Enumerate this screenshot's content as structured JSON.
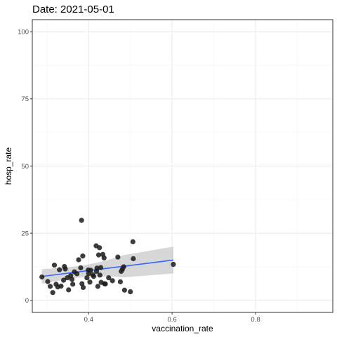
{
  "chart_data": {
    "type": "scatter",
    "title": "Date: 2021-05-01",
    "xlabel": "vaccination_rate",
    "ylabel": "hosp_rate",
    "xlim": [
      0.265,
      0.985
    ],
    "ylim": [
      -4.5,
      104.5
    ],
    "x_ticks": [
      0.4,
      0.6,
      0.8
    ],
    "x_tick_labels": [
      "0.4",
      "0.6",
      "0.8"
    ],
    "y_ticks": [
      0,
      25,
      50,
      75,
      100
    ],
    "y_tick_labels": [
      "0",
      "25",
      "50",
      "75",
      "100"
    ],
    "grid": true,
    "colors": {
      "points": "#1a1a1a",
      "trend_line": "#3366FF",
      "confidence_band": "#bdbdbd",
      "grid_major": "#ebebeb",
      "grid_minor": "#f5f5f5",
      "panel_border": "#333333"
    },
    "points": [
      [
        0.288,
        8.7
      ],
      [
        0.302,
        7.0
      ],
      [
        0.308,
        5.2
      ],
      [
        0.314,
        2.9
      ],
      [
        0.318,
        13.1
      ],
      [
        0.322,
        6.0
      ],
      [
        0.326,
        5.0
      ],
      [
        0.33,
        11.4
      ],
      [
        0.334,
        5.3
      ],
      [
        0.34,
        7.5
      ],
      [
        0.342,
        12.6
      ],
      [
        0.344,
        11.7
      ],
      [
        0.349,
        8.4
      ],
      [
        0.352,
        3.9
      ],
      [
        0.357,
        9.2
      ],
      [
        0.36,
        7.8
      ],
      [
        0.362,
        6.0
      ],
      [
        0.366,
        10.6
      ],
      [
        0.372,
        9.9
      ],
      [
        0.376,
        15.1
      ],
      [
        0.381,
        12.1
      ],
      [
        0.383,
        29.8
      ],
      [
        0.384,
        6.2
      ],
      [
        0.386,
        16.5
      ],
      [
        0.387,
        4.8
      ],
      [
        0.396,
        8.4
      ],
      [
        0.399,
        11.3
      ],
      [
        0.4,
        10.0
      ],
      [
        0.403,
        6.8
      ],
      [
        0.405,
        11.2
      ],
      [
        0.41,
        9.5
      ],
      [
        0.412,
        8.9
      ],
      [
        0.418,
        20.3
      ],
      [
        0.419,
        10.8
      ],
      [
        0.42,
        12.0
      ],
      [
        0.422,
        5.2
      ],
      [
        0.424,
        16.9
      ],
      [
        0.426,
        19.6
      ],
      [
        0.427,
        9.4
      ],
      [
        0.429,
        12.2
      ],
      [
        0.43,
        6.7
      ],
      [
        0.434,
        17.1
      ],
      [
        0.437,
        15.8
      ],
      [
        0.438,
        6.2
      ],
      [
        0.44,
        6.1
      ],
      [
        0.448,
        8.4
      ],
      [
        0.457,
        7.3
      ],
      [
        0.47,
        16.1
      ],
      [
        0.476,
        6.9
      ],
      [
        0.478,
        10.8
      ],
      [
        0.481,
        11.6
      ],
      [
        0.484,
        12.5
      ],
      [
        0.486,
        3.8
      ],
      [
        0.5,
        3.2
      ],
      [
        0.506,
        21.8
      ],
      [
        0.507,
        15.5
      ],
      [
        0.603,
        13.4
      ]
    ],
    "trend": {
      "method": "lm",
      "x_range": [
        0.288,
        0.603
      ],
      "fit": [
        8.9,
        15.0
      ],
      "ci_lower": [
        6.2,
        10.0
      ],
      "ci_upper": [
        11.6,
        20.0
      ]
    }
  }
}
